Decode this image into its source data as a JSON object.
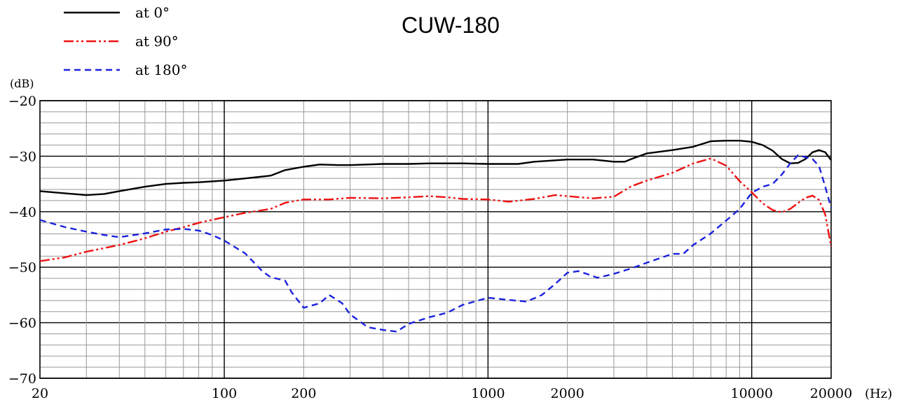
{
  "chart_data": {
    "type": "line",
    "title": "CUW-180",
    "ylabel": "(dB)",
    "xlabel": "(Hz)",
    "xscale": "log",
    "xlim": [
      20,
      20000
    ],
    "ylim": [
      -70,
      -20
    ],
    "grid": true,
    "legend_position": "top-left",
    "x_ticks": [
      20,
      100,
      200,
      1000,
      2000,
      10000,
      20000
    ],
    "x_tick_labels": [
      "20",
      "100",
      "200",
      "1000",
      "2000",
      "10000",
      "20000"
    ],
    "y_ticks": [
      -70,
      -60,
      -50,
      -40,
      -30,
      -20
    ],
    "y_tick_labels": [
      "-70",
      "-60",
      "-50",
      "-40",
      "-30",
      "-20"
    ],
    "series": [
      {
        "name": "at 0°",
        "color": "#000000",
        "style": "solid",
        "points": [
          [
            20,
            -36.3
          ],
          [
            25,
            -36.7
          ],
          [
            30,
            -37.0
          ],
          [
            35,
            -36.8
          ],
          [
            40,
            -36.3
          ],
          [
            50,
            -35.5
          ],
          [
            60,
            -35.0
          ],
          [
            70,
            -34.8
          ],
          [
            80,
            -34.7
          ],
          [
            100,
            -34.4
          ],
          [
            120,
            -34.0
          ],
          [
            150,
            -33.5
          ],
          [
            170,
            -32.5
          ],
          [
            200,
            -31.9
          ],
          [
            230,
            -31.5
          ],
          [
            270,
            -31.6
          ],
          [
            300,
            -31.6
          ],
          [
            400,
            -31.4
          ],
          [
            500,
            -31.4
          ],
          [
            600,
            -31.3
          ],
          [
            800,
            -31.3
          ],
          [
            1000,
            -31.4
          ],
          [
            1300,
            -31.4
          ],
          [
            1500,
            -31.0
          ],
          [
            2000,
            -30.6
          ],
          [
            2500,
            -30.6
          ],
          [
            3000,
            -31.0
          ],
          [
            3300,
            -31.0
          ],
          [
            3500,
            -30.5
          ],
          [
            4000,
            -29.5
          ],
          [
            5000,
            -28.9
          ],
          [
            6000,
            -28.3
          ],
          [
            7000,
            -27.3
          ],
          [
            8000,
            -27.2
          ],
          [
            9000,
            -27.2
          ],
          [
            10000,
            -27.4
          ],
          [
            11000,
            -28.0
          ],
          [
            12000,
            -29.0
          ],
          [
            13000,
            -30.5
          ],
          [
            14000,
            -31.3
          ],
          [
            15000,
            -31.2
          ],
          [
            16000,
            -30.5
          ],
          [
            17000,
            -29.3
          ],
          [
            18000,
            -28.9
          ],
          [
            19000,
            -29.3
          ],
          [
            20000,
            -30.7
          ]
        ]
      },
      {
        "name": "at 90°",
        "color": "#ee1111",
        "style": "dash-dot-dot",
        "points": [
          [
            20,
            -48.9
          ],
          [
            25,
            -48.2
          ],
          [
            30,
            -47.2
          ],
          [
            40,
            -46.0
          ],
          [
            50,
            -44.8
          ],
          [
            60,
            -43.6
          ],
          [
            70,
            -42.8
          ],
          [
            80,
            -42.0
          ],
          [
            100,
            -41.0
          ],
          [
            120,
            -40.2
          ],
          [
            150,
            -39.5
          ],
          [
            170,
            -38.4
          ],
          [
            200,
            -37.8
          ],
          [
            250,
            -37.8
          ],
          [
            300,
            -37.5
          ],
          [
            400,
            -37.6
          ],
          [
            500,
            -37.4
          ],
          [
            600,
            -37.2
          ],
          [
            700,
            -37.4
          ],
          [
            800,
            -37.7
          ],
          [
            1000,
            -37.8
          ],
          [
            1200,
            -38.2
          ],
          [
            1500,
            -37.7
          ],
          [
            1800,
            -37.0
          ],
          [
            2000,
            -37.2
          ],
          [
            2500,
            -37.6
          ],
          [
            3000,
            -37.3
          ],
          [
            3500,
            -35.4
          ],
          [
            4000,
            -34.4
          ],
          [
            5000,
            -33.0
          ],
          [
            6000,
            -31.3
          ],
          [
            7000,
            -30.4
          ],
          [
            8000,
            -31.7
          ],
          [
            9000,
            -34.5
          ],
          [
            10000,
            -36.5
          ],
          [
            11000,
            -38.5
          ],
          [
            12000,
            -39.7
          ],
          [
            13000,
            -40.1
          ],
          [
            14000,
            -39.5
          ],
          [
            15000,
            -38.4
          ],
          [
            16000,
            -37.5
          ],
          [
            17000,
            -37.1
          ],
          [
            18000,
            -37.9
          ],
          [
            19000,
            -40.5
          ],
          [
            20000,
            -46.3
          ]
        ]
      },
      {
        "name": "at 180°",
        "color": "#1a22dd",
        "style": "dashed",
        "points": [
          [
            20,
            -41.5
          ],
          [
            25,
            -42.8
          ],
          [
            30,
            -43.6
          ],
          [
            35,
            -44.2
          ],
          [
            40,
            -44.6
          ],
          [
            50,
            -43.9
          ],
          [
            60,
            -43.2
          ],
          [
            70,
            -43.1
          ],
          [
            80,
            -43.4
          ],
          [
            90,
            -44.2
          ],
          [
            100,
            -45.2
          ],
          [
            120,
            -47.5
          ],
          [
            140,
            -50.8
          ],
          [
            150,
            -51.8
          ],
          [
            170,
            -52.4
          ],
          [
            180,
            -54.5
          ],
          [
            200,
            -57.3
          ],
          [
            230,
            -56.5
          ],
          [
            250,
            -55.0
          ],
          [
            280,
            -56.5
          ],
          [
            300,
            -58.5
          ],
          [
            350,
            -60.8
          ],
          [
            400,
            -61.3
          ],
          [
            450,
            -61.6
          ],
          [
            500,
            -60.2
          ],
          [
            600,
            -59.0
          ],
          [
            700,
            -58.2
          ],
          [
            800,
            -56.8
          ],
          [
            1000,
            -55.5
          ],
          [
            1200,
            -55.9
          ],
          [
            1400,
            -56.2
          ],
          [
            1600,
            -55.0
          ],
          [
            1800,
            -53.0
          ],
          [
            2000,
            -51.0
          ],
          [
            2200,
            -50.7
          ],
          [
            2400,
            -51.3
          ],
          [
            2600,
            -51.9
          ],
          [
            3000,
            -51.2
          ],
          [
            3500,
            -50.2
          ],
          [
            4000,
            -49.2
          ],
          [
            5000,
            -47.6
          ],
          [
            5500,
            -47.6
          ],
          [
            6000,
            -46.0
          ],
          [
            7000,
            -43.9
          ],
          [
            8000,
            -41.6
          ],
          [
            9000,
            -39.5
          ],
          [
            10000,
            -36.6
          ],
          [
            11000,
            -35.5
          ],
          [
            12000,
            -35.0
          ],
          [
            13000,
            -33.3
          ],
          [
            14000,
            -31.3
          ],
          [
            15000,
            -29.8
          ],
          [
            16000,
            -30.2
          ],
          [
            17000,
            -30.5
          ],
          [
            18000,
            -31.8
          ],
          [
            19000,
            -35.5
          ],
          [
            20000,
            -39.3
          ]
        ]
      }
    ]
  }
}
